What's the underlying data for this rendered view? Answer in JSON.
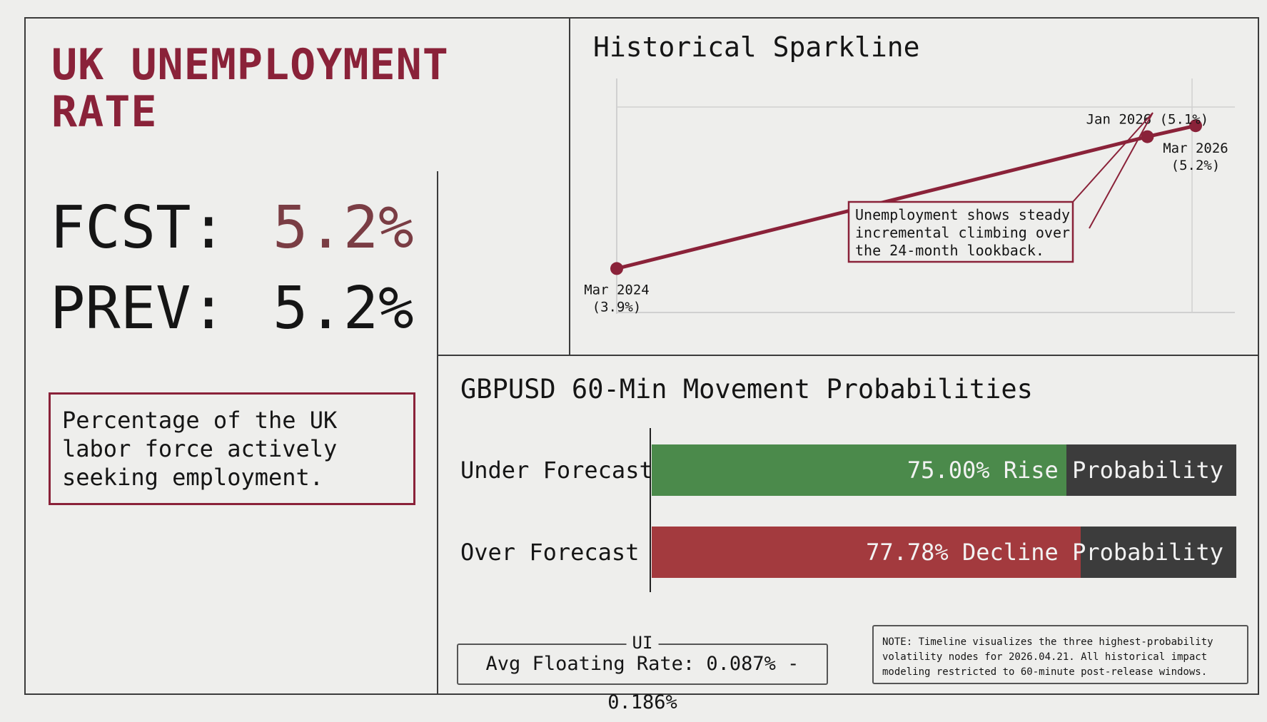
{
  "title": "UK UNEMPLOYMENT RATE",
  "stats": {
    "fcst_label": "FCST:",
    "fcst_value": "5.2%",
    "prev_label": "PREV:",
    "prev_value": "5.2%"
  },
  "description": "Percentage of the UK labor force actively seeking employment.",
  "colors": {
    "accent": "#8a2239",
    "green": "#4b8a4b",
    "red": "#a33a3e",
    "bar_track": "#3c3c3c"
  },
  "sparkline": {
    "title": "Historical Sparkline",
    "annotation": [
      "Unemployment shows steady",
      "incremental climbing over",
      "the 24-month lookback."
    ]
  },
  "chart_data": [
    {
      "type": "line",
      "title": "Historical Sparkline",
      "x": [
        "Mar 2024",
        "Jan 2026",
        "Mar 2026"
      ],
      "x_months": [
        0,
        22,
        24
      ],
      "values": [
        3.9,
        5.1,
        5.2
      ],
      "point_labels": [
        [
          "Mar 2024",
          "(3.9%)"
        ],
        [
          "Jan 2026 (5.1%)"
        ],
        [
          "Mar 2026",
          "(5.2%)"
        ]
      ],
      "ylim": [
        3.5,
        5.5
      ],
      "grid": true,
      "annotation": "Unemployment shows steady incremental climbing over the 24-month lookback."
    },
    {
      "type": "bar",
      "orientation": "horizontal",
      "title": "GBPUSD 60-Min Movement Probabilities",
      "categories": [
        "Under Forecast",
        "Over Forecast"
      ],
      "values": [
        75.0,
        77.78
      ],
      "value_labels": [
        "75.00% Rise Probability",
        "77.78% Decline Probability"
      ],
      "xlim": [
        0,
        100
      ]
    }
  ],
  "probabilities": {
    "title": "GBPUSD 60-Min Movement Probabilities",
    "rows": [
      {
        "label": "Under Forecast",
        "text": "75.00% Rise Probability",
        "pct": 75.0
      },
      {
        "label": "Over Forecast",
        "text": "77.78% Decline Probability",
        "pct": 77.78
      }
    ]
  },
  "rate_box": {
    "legend": "UI",
    "text": "Avg Floating Rate: 0.087% - 0.186%"
  },
  "note": "NOTE: Timeline visualizes the three highest-probability volatility nodes for 2026.04.21. All historical impact modeling restricted to 60-minute post-release windows."
}
